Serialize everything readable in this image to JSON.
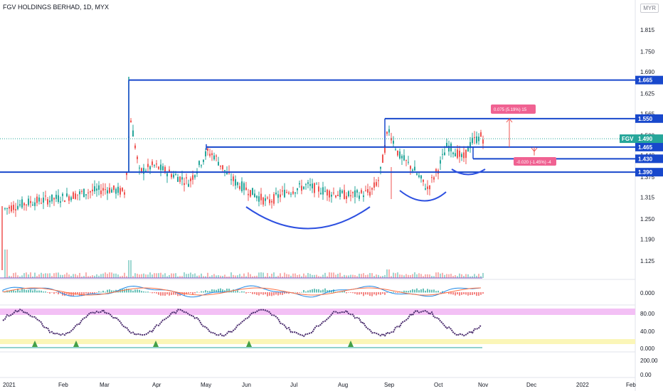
{
  "header": {
    "title": "FGV HOLDINGS BERHAD, 1D, MYX",
    "currency": "MYR"
  },
  "colors": {
    "up": "#26a69a",
    "down": "#ef5350",
    "blue": "#2962ff",
    "trend": "#1848cc",
    "arc": "#2d50e0",
    "stoch_k": "#4a2c6d",
    "stoch_d": "#8b8f2a",
    "band_hi": "#f3c0f5",
    "band_lo": "#fbf6b8",
    "macd": "#1e88e5",
    "signal": "#ff7043"
  },
  "price_axis": {
    "ticks": [
      "1.815",
      "1.750",
      "1.690",
      "1.625",
      "1.565",
      "1.500",
      "1.440",
      "1.375",
      "1.315",
      "1.250",
      "1.190",
      "1.125"
    ]
  },
  "macd_axis": {
    "ticks": [
      "0.000"
    ]
  },
  "stoch_axis": {
    "ticks": [
      "80.00",
      "40.00",
      "0.000"
    ]
  },
  "vol_axis": {
    "ticks": [
      "200.00",
      "0.00"
    ]
  },
  "time_axis": {
    "ticks": [
      "2021",
      "Feb",
      "Mar",
      "Apr",
      "May",
      "Jun",
      "Jul",
      "Aug",
      "Sep",
      "Oct",
      "Nov",
      "Dec",
      "2022",
      "Feb"
    ]
  },
  "levels": [
    {
      "label": "1.665",
      "value": 1.665
    },
    {
      "label": "1.550",
      "value": 1.55
    },
    {
      "label": "1.465",
      "value": 1.465
    },
    {
      "label": "1.430",
      "value": 1.43
    },
    {
      "label": "1.390",
      "value": 1.39
    }
  ],
  "current": {
    "ticker": "FGV",
    "price": "1.490"
  },
  "measure_up": {
    "text": "0.075 (5.19%) 15"
  },
  "measure_down": {
    "text": "-0.020 (-1.45%) -4"
  }
}
